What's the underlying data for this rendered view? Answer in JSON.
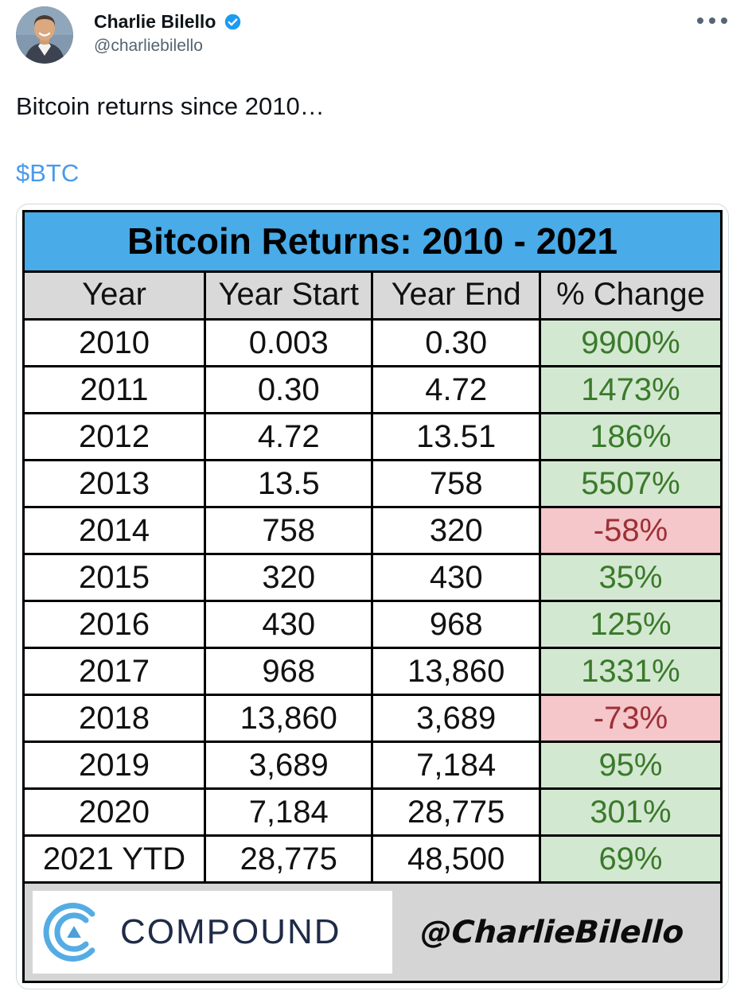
{
  "tweet": {
    "author_name": "Charlie Bilello",
    "author_handle": "@charliebilello",
    "text": "Bitcoin returns since 2010…",
    "cashtag": "$BTC",
    "icons": {
      "verified": "verified-badge-icon",
      "more": "more-horizontal-icon"
    }
  },
  "table": {
    "title": "Bitcoin Returns: 2010 - 2021",
    "columns": [
      "Year",
      "Year Start",
      "Year End",
      "% Change"
    ],
    "rows": [
      {
        "year": "2010",
        "start": "0.003",
        "end": "0.30",
        "change": "9900%",
        "positive": true
      },
      {
        "year": "2011",
        "start": "0.30",
        "end": "4.72",
        "change": "1473%",
        "positive": true
      },
      {
        "year": "2012",
        "start": "4.72",
        "end": "13.51",
        "change": "186%",
        "positive": true
      },
      {
        "year": "2013",
        "start": "13.5",
        "end": "758",
        "change": "5507%",
        "positive": true
      },
      {
        "year": "2014",
        "start": "758",
        "end": "320",
        "change": "-58%",
        "positive": false
      },
      {
        "year": "2015",
        "start": "320",
        "end": "430",
        "change": "35%",
        "positive": true
      },
      {
        "year": "2016",
        "start": "430",
        "end": "968",
        "change": "125%",
        "positive": true
      },
      {
        "year": "2017",
        "start": "968",
        "end": "13,860",
        "change": "1331%",
        "positive": true
      },
      {
        "year": "2018",
        "start": "13,860",
        "end": "3,689",
        "change": "-73%",
        "positive": false
      },
      {
        "year": "2019",
        "start": "3,689",
        "end": "7,184",
        "change": "95%",
        "positive": true
      },
      {
        "year": "2020",
        "start": "7,184",
        "end": "28,775",
        "change": "301%",
        "positive": true
      },
      {
        "year": "2021 YTD",
        "start": "28,775",
        "end": "48,500",
        "change": "69%",
        "positive": true
      }
    ],
    "footer": {
      "brand": "COMPOUND",
      "credit": "@CharlieBilello"
    }
  },
  "colors": {
    "link_blue": "#4a9aea",
    "verified_blue": "#1d9bf0",
    "table_title_bg": "#49abe7",
    "header_row_bg": "#d9d9d9",
    "positive_bg": "#d3e8d1",
    "positive_text": "#3a7a2b",
    "negative_bg": "#f5c6ca",
    "negative_text": "#9c3036",
    "footer_bg": "#d5d5d5",
    "brand_navy": "#1f2b47",
    "logo_blue": "#55ace4"
  }
}
